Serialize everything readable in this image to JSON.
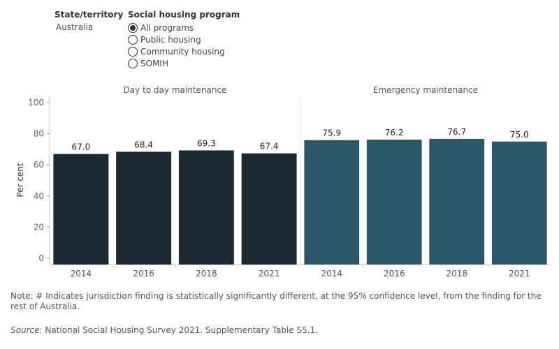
{
  "filters": {
    "state_label": "State/territory",
    "state_value": "Australia",
    "program_label": "Social housing program",
    "program_options": [
      {
        "label": "All programs",
        "selected": true
      },
      {
        "label": "Public housing",
        "selected": false
      },
      {
        "label": "Community housing",
        "selected": false
      },
      {
        "label": "SOMIH",
        "selected": false
      }
    ]
  },
  "chart_data": {
    "type": "bar",
    "ylabel": "Per cent",
    "ylim": [
      0,
      100
    ],
    "yticks": [
      0,
      20,
      40,
      60,
      80,
      100
    ],
    "grid": false,
    "panels": [
      {
        "title": "Day to day maintenance",
        "color": "#1b2b33",
        "categories": [
          "2014",
          "2016",
          "2018",
          "2021"
        ],
        "values": [
          67.0,
          68.4,
          69.3,
          67.4
        ],
        "labels": [
          "67.0",
          "68.4",
          "69.3",
          "67.4"
        ]
      },
      {
        "title": "Emergency maintenance",
        "color": "#2b5868",
        "categories": [
          "2014",
          "2016",
          "2018",
          "2021"
        ],
        "values": [
          75.9,
          76.2,
          76.7,
          75.0
        ],
        "labels": [
          "75.9",
          "76.2",
          "76.7",
          "75.0"
        ]
      }
    ]
  },
  "note": "Note: # Indicates jurisdiction finding is statistically significantly different, at the 95% confidence level, from the finding for the rest of Australia.",
  "source": {
    "label": "Source:",
    "text": " National Social Housing Survey 2021. Supplementary Table S5.1."
  }
}
